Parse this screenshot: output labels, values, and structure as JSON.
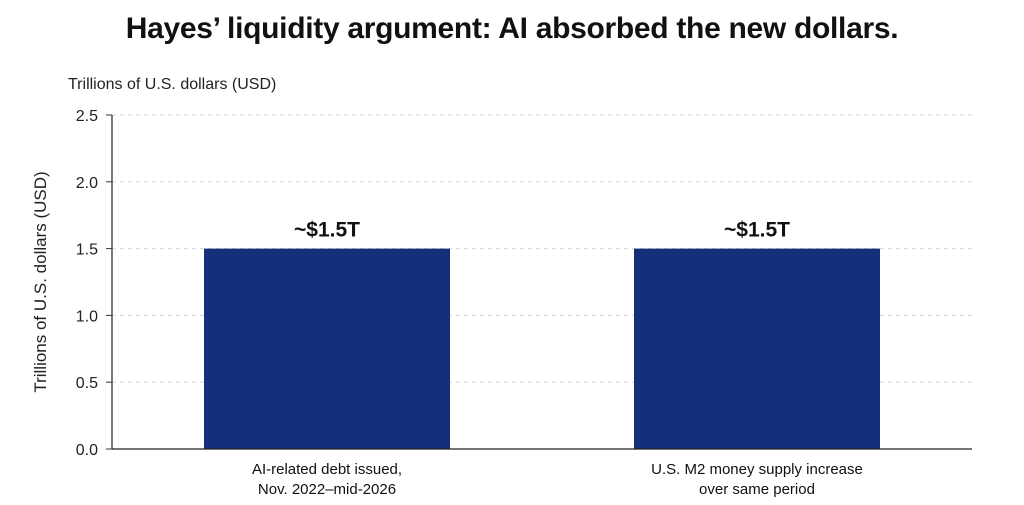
{
  "chart_data": {
    "type": "bar",
    "title": "Hayes’ liquidity argument: AI absorbed the new dollars.",
    "units_label": "Trillions of U.S. dollars (USD)",
    "ylabel": "Trillions of U.S. dollars (USD)",
    "xlabel": "",
    "ylim": [
      0,
      2.5
    ],
    "yticks": [
      0.0,
      0.5,
      1.0,
      1.5,
      2.0,
      2.5
    ],
    "ytick_labels": [
      "0.0",
      "0.5",
      "1.0",
      "1.5",
      "2.0",
      "2.5"
    ],
    "grid": true,
    "categories": [
      [
        "AI-related debt issued,",
        "Nov. 2022–mid-2026"
      ],
      [
        "U.S. M2 money supply increase",
        "over same period"
      ]
    ],
    "values": [
      1.5,
      1.5
    ],
    "data_labels": [
      "~$1.5T",
      "~$1.5T"
    ],
    "bar_color": "#14307A",
    "grid_color": "#d6d6d6"
  }
}
